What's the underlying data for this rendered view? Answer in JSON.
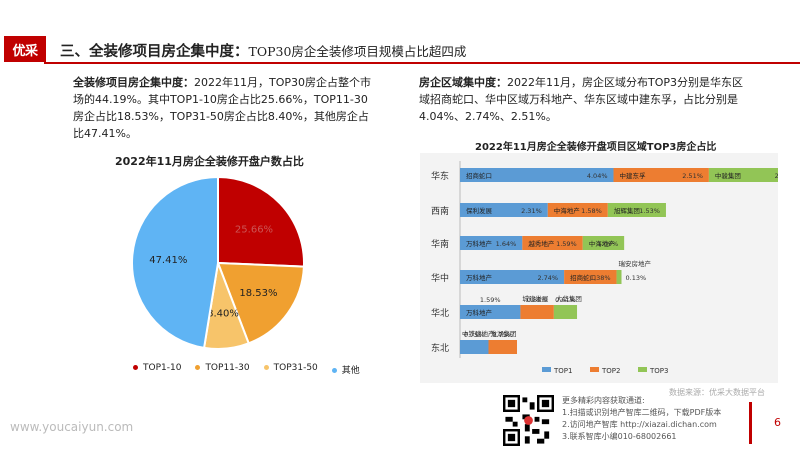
{
  "header": {
    "logo_text": "优采",
    "title": "三、全装修项目房企集中度：",
    "subtitle": "TOP30房企全装修项目规模占比超四成"
  },
  "left_text": {
    "lead": "全装修项目房企集中度：",
    "body": "2022年11月，TOP30房企占整个市场的44.19%。其中TOP1-10房企占比25.66%，TOP11-30房企占比18.53%，TOP31-50房企占比8.40%，其他房企占比47.41%。"
  },
  "right_text": {
    "lead": "房企区域集中度：",
    "body": "2022年11月，房企区域分布TOP3分别是华东区域招商蛇口、华中区域万科地产、华东区域中建东孚，占比分别是4.04%、2.74%、2.51%。"
  },
  "footer": {
    "source": "数据来源：优采大数据平台",
    "info_line1": "更多精彩内容获取通道:",
    "info_line2": "1.扫描或识别地产智库二维码，下载PDF版本",
    "info_line3": "2.访问地产智库 http://xiazai.dichan.com",
    "info_line4": "3.联系智库小编010-68002661",
    "page": "6",
    "site": "www.youcaiyun.com"
  },
  "chart_data": [
    {
      "type": "pie",
      "title": "2022年11月房企全装修开盘户数占比",
      "categories": [
        "TOP1-10",
        "TOP11-30",
        "TOP31-50",
        "其他"
      ],
      "values": [
        25.66,
        18.53,
        8.4,
        47.41
      ],
      "labels": [
        "25.66%",
        "18.53%",
        "8.40%",
        "47.41%"
      ],
      "colors": [
        "#c00000",
        "#f0a030",
        "#f7c46a",
        "#5fb4f4"
      ],
      "legend": "bottom"
    },
    {
      "type": "bar",
      "orientation": "horizontal",
      "stacked": true,
      "title": "2022年11月房企全装修开盘项目区域TOP3房企占比",
      "categories": [
        "华东",
        "西南",
        "华南",
        "华中",
        "华北",
        "东北"
      ],
      "series": [
        {
          "name": "TOP1",
          "color": "#5b9bd5",
          "values": [
            4.04,
            2.31,
            1.64,
            2.74,
            1.59,
            0.75
          ],
          "companies": [
            "招商蛇口",
            "保利发展",
            "万科地产",
            "万科地产",
            "万科地产",
            "中铁建地产"
          ]
        },
        {
          "name": "TOP2",
          "color": "#ed7d31",
          "values": [
            2.51,
            1.58,
            1.59,
            1.38,
            0.88,
            0.75
          ],
          "companies": [
            "中建东孚",
            "中海地产",
            "越秀地产",
            "招商蛇口",
            "城建发展",
            "龙湖集团"
          ]
        },
        {
          "name": "TOP3",
          "color": "#92c556",
          "values": [
            2.43,
            1.53,
            1.09,
            0.13,
            0.61,
            0
          ],
          "companies": [
            "中骏集团",
            "旭辉集团",
            "中海地产",
            "瑞安房地产",
            "大华集团",
            ""
          ]
        }
      ],
      "value_labels": [
        [
          "4.04%",
          "2.51%",
          "2.43%"
        ],
        [
          "2.31%",
          "1.58%",
          "1.53%"
        ],
        [
          "1.64%",
          "1.59%",
          "1.09%"
        ],
        [
          "2.74%",
          "1.38%",
          "0.13%"
        ],
        [
          "1.59%",
          "0.88%",
          "0.61%"
        ],
        [
          "0.75%",
          "0.75%",
          ""
        ]
      ],
      "legend": "bottom"
    }
  ]
}
